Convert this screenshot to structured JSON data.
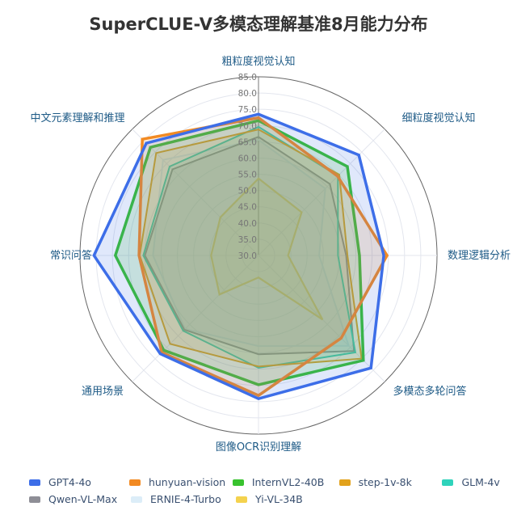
{
  "chart_data": {
    "type": "radar",
    "title": "SuperCLUE-V多模态理解基准8月能力分布",
    "axes": [
      "粗粒度视觉认知",
      "细粒度视觉认知",
      "数理逻辑分析",
      "多模态多轮问答",
      "图像OCR识别理解",
      "通用场景",
      "常识问答",
      "中文元素理解和推理"
    ],
    "radial_range": [
      30,
      85
    ],
    "radial_ticks": [
      "30.0",
      "35.0",
      "40.0",
      "45.0",
      "50.0",
      "55.0",
      "60.0",
      "65.0",
      "70.0",
      "75.0",
      "80.0",
      "85.0"
    ],
    "grid": true,
    "legend_placement": "bottom",
    "series": [
      {
        "name": "GPT4-4o",
        "color": "#3d6ee8",
        "values": [
          73.5,
          73.7,
          68.6,
          79.0,
          74.1,
          72.8,
          80.7,
          78.9
        ]
      },
      {
        "name": "hunyuan-vision",
        "color": "#f28a22",
        "values": [
          72.4,
          64.5,
          69.6,
          66.0,
          73.1,
          72.2,
          66.8,
          80.6
        ]
      },
      {
        "name": "InternVL2-40B",
        "color": "#38c22e",
        "values": [
          71.5,
          68.7,
          61.1,
          75.7,
          69.8,
          71.3,
          74.1,
          77.1
        ]
      },
      {
        "name": "step-1v-8k",
        "color": "#e2a21c",
        "values": [
          68.8,
          65.2,
          57.4,
          74.9,
          64.2,
          68.5,
          66.6,
          74.6
        ]
      },
      {
        "name": "GLM-4v",
        "color": "#2fd3bb",
        "values": [
          69.6,
          64.6,
          54.5,
          72.2,
          64.6,
          62.8,
          65.5,
          68.7
        ]
      },
      {
        "name": "Qwen-VL-Max",
        "color": "#8e8e96",
        "values": [
          66.5,
          61.1,
          57.0,
          71.6,
          60.4,
          62.3,
          65.0,
          67.5
        ]
      },
      {
        "name": "ERNIE-4-Turbo",
        "color": "#dcedf8",
        "values": [
          65.6,
          59.1,
          48.7,
          69.3,
          57.9,
          62.0,
          62.5,
          71.6
        ]
      },
      {
        "name": "Yi-VL-34B",
        "color": "#f4d24e",
        "values": [
          53.7,
          48.8,
          39.1,
          57.9,
          36.8,
          47.0,
          44.6,
          46.6
        ]
      }
    ]
  }
}
